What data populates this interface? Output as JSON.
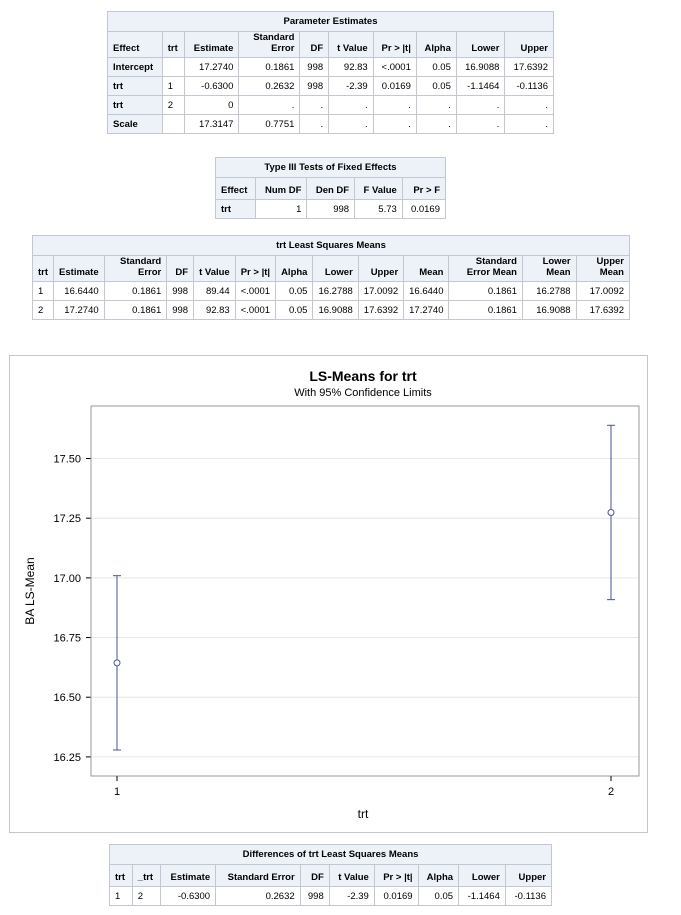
{
  "param_estimates": {
    "caption": "Parameter Estimates",
    "headers": [
      "Effect",
      "trt",
      "Estimate",
      "Standard Error",
      "DF",
      "t Value",
      "Pr > |t|",
      "Alpha",
      "Lower",
      "Upper"
    ],
    "rows": [
      [
        "Intercept",
        "",
        "17.2740",
        "0.1861",
        "998",
        "92.83",
        "<.0001",
        "0.05",
        "16.9088",
        "17.6392"
      ],
      [
        "trt",
        "1",
        "-0.6300",
        "0.2632",
        "998",
        "-2.39",
        "0.0169",
        "0.05",
        "-1.1464",
        "-0.1136"
      ],
      [
        "trt",
        "2",
        "0",
        ".",
        ".",
        ".",
        ".",
        ".",
        ".",
        "."
      ],
      [
        "Scale",
        "",
        "17.3147",
        "0.7751",
        ".",
        ".",
        ".",
        ".",
        ".",
        "."
      ]
    ]
  },
  "fixed_effects": {
    "caption": "Type III Tests of Fixed Effects",
    "headers": [
      "Effect",
      "Num DF",
      "Den DF",
      "F Value",
      "Pr > F"
    ],
    "rows": [
      [
        "trt",
        "1",
        "998",
        "5.73",
        "0.0169"
      ]
    ]
  },
  "ls_means": {
    "caption": "trt Least Squares Means",
    "headers": [
      "trt",
      "Estimate",
      "Standard Error",
      "DF",
      "t Value",
      "Pr > |t|",
      "Alpha",
      "Lower",
      "Upper",
      "Mean",
      "Standard Error Mean",
      "Lower Mean",
      "Upper Mean"
    ],
    "rows": [
      [
        "1",
        "16.6440",
        "0.1861",
        "998",
        "89.44",
        "<.0001",
        "0.05",
        "16.2788",
        "17.0092",
        "16.6440",
        "0.1861",
        "16.2788",
        "17.0092"
      ],
      [
        "2",
        "17.2740",
        "0.1861",
        "998",
        "92.83",
        "<.0001",
        "0.05",
        "16.9088",
        "17.6392",
        "17.2740",
        "0.1861",
        "16.9088",
        "17.6392"
      ]
    ]
  },
  "chart_data": {
    "type": "scatter",
    "title": "LS-Means for trt",
    "subtitle": "With 95% Confidence Limits",
    "xlabel": "trt",
    "ylabel": "BA LS-Mean",
    "categories": [
      "1",
      "2"
    ],
    "values": [
      16.644,
      17.274
    ],
    "lower": [
      16.2788,
      16.9088
    ],
    "upper": [
      17.0092,
      17.6392
    ],
    "yticks": [
      16.25,
      16.5,
      16.75,
      17.0,
      17.25,
      17.5
    ],
    "ytick_labels": [
      "16.25",
      "16.50",
      "16.75",
      "17.00",
      "17.25",
      "17.50"
    ],
    "ylim": [
      16.17,
      17.72
    ],
    "grid": true,
    "colors": {
      "line": "#445694",
      "grid": "#e6e6e6",
      "wall_border": "#999999"
    }
  },
  "differences": {
    "caption": "Differences of trt Least Squares Means",
    "headers": [
      "trt",
      "_trt",
      "Estimate",
      "Standard Error",
      "DF",
      "t Value",
      "Pr > |t|",
      "Alpha",
      "Lower",
      "Upper"
    ],
    "rows": [
      [
        "1",
        "2",
        "-0.6300",
        "0.2632",
        "998",
        "-2.39",
        "0.0169",
        "0.05",
        "-1.1464",
        "-0.1136"
      ]
    ]
  }
}
